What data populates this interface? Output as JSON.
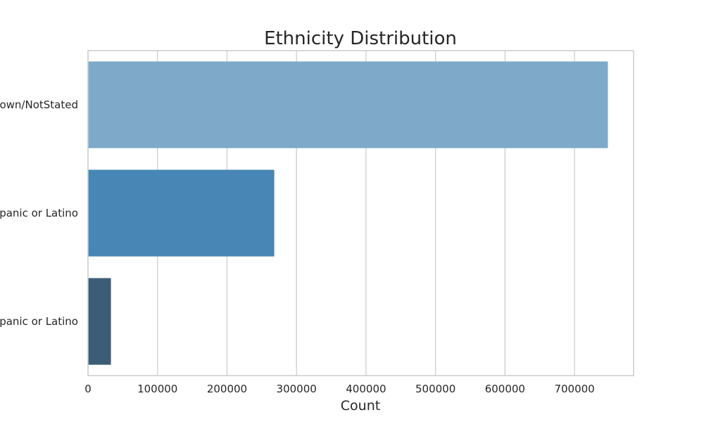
{
  "chart_data": {
    "type": "bar",
    "orientation": "horizontal",
    "title": "Ethnicity Distribution",
    "xlabel": "Count",
    "ylabel": "",
    "categories": [
      "Unknown/NotStated",
      "Not Hispanic or Latino",
      "Hispanic or Latino"
    ],
    "category_labels_visible": [
      "nown/NotStated",
      "spanic or Latino",
      "spanic or Latino"
    ],
    "values": [
      748000,
      268000,
      33000
    ],
    "colors": [
      "#7ea9c9",
      "#4786b5",
      "#3d5d76"
    ],
    "xlim": [
      0,
      785000
    ],
    "xticks": [
      0,
      100000,
      200000,
      300000,
      400000,
      500000,
      600000,
      700000
    ],
    "xtick_labels": [
      "0",
      "100000",
      "200000",
      "300000",
      "400000",
      "500000",
      "600000",
      "700000"
    ],
    "grid": "vertical",
    "legend": "none"
  }
}
